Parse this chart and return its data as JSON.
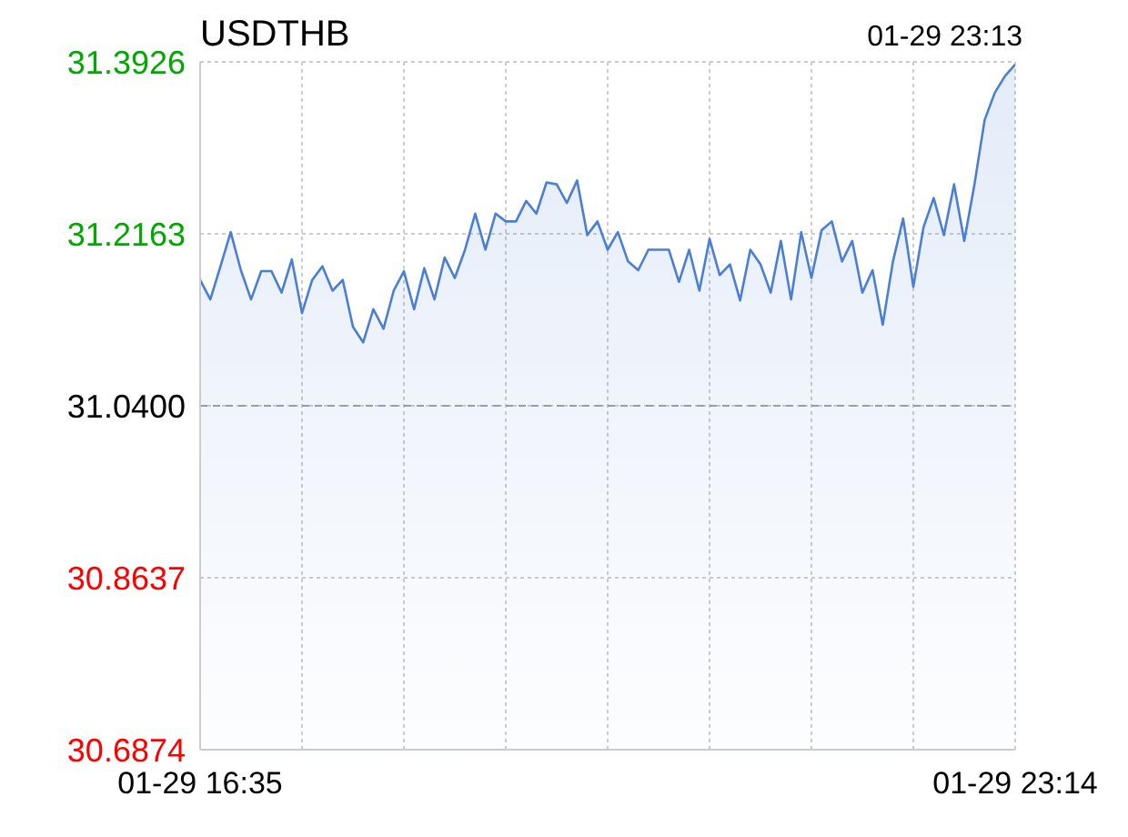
{
  "chart_data": {
    "type": "area",
    "title": "USDTHB",
    "annotations": [
      "01-29 23:13"
    ],
    "categories": [
      "01-29 16:35",
      null,
      null,
      null,
      null,
      null,
      null,
      null,
      null,
      null,
      null,
      null,
      null,
      null,
      null,
      null,
      null,
      null,
      null,
      null,
      null,
      null,
      null,
      null,
      null,
      null,
      null,
      null,
      null,
      null,
      null,
      null,
      null,
      null,
      null,
      null,
      null,
      null,
      null,
      null,
      null,
      null,
      null,
      null,
      null,
      null,
      null,
      null,
      null,
      null,
      null,
      null,
      null,
      null,
      null,
      null,
      null,
      null,
      null,
      null,
      null,
      null,
      null,
      null,
      null,
      null,
      null,
      null,
      null,
      null,
      null,
      null,
      null,
      null,
      null,
      null,
      null,
      null,
      null,
      null,
      "01-29 23:14"
    ],
    "ylim": [
      30.6874,
      31.3926
    ],
    "yticks": [
      30.6874,
      30.8637,
      {
        "value": 31.04,
        "label": "31.0400"
      },
      31.2163,
      31.3926
    ],
    "grid": true,
    "ref_lines": [
      {
        "axis": "y",
        "value": 31.04,
        "label": null,
        "color": "#9a9aaa",
        "line_style": "dashed"
      }
    ],
    "series": [
      {
        "color": "#4a7fd4",
        "values": [
          31.169,
          31.149,
          31.183,
          31.218,
          31.179,
          31.149,
          31.178,
          31.178,
          31.156,
          31.19,
          31.135,
          31.169,
          31.183,
          31.158,
          31.169,
          31.121,
          31.105,
          31.139,
          31.119,
          31.158,
          31.178,
          31.139,
          31.181,
          31.149,
          31.192,
          31.171,
          31.2,
          31.237,
          31.2,
          31.237,
          31.229,
          31.229,
          31.25,
          31.237,
          31.269,
          31.267,
          31.248,
          31.271,
          31.215,
          31.229,
          31.2,
          31.218,
          31.188,
          31.179,
          31.2,
          31.2,
          31.2,
          31.167,
          31.2,
          31.158,
          31.211,
          31.174,
          31.185,
          31.148,
          31.2,
          31.185,
          31.156,
          31.209,
          31.149,
          31.218,
          31.171,
          31.22,
          31.229,
          31.188,
          31.209,
          31.156,
          31.179,
          31.123,
          31.188,
          31.232,
          31.162,
          31.223,
          31.253,
          31.215,
          31.267,
          31.209,
          31.267,
          31.333,
          31.361,
          31.378,
          31.39
        ]
      }
    ]
  }
}
